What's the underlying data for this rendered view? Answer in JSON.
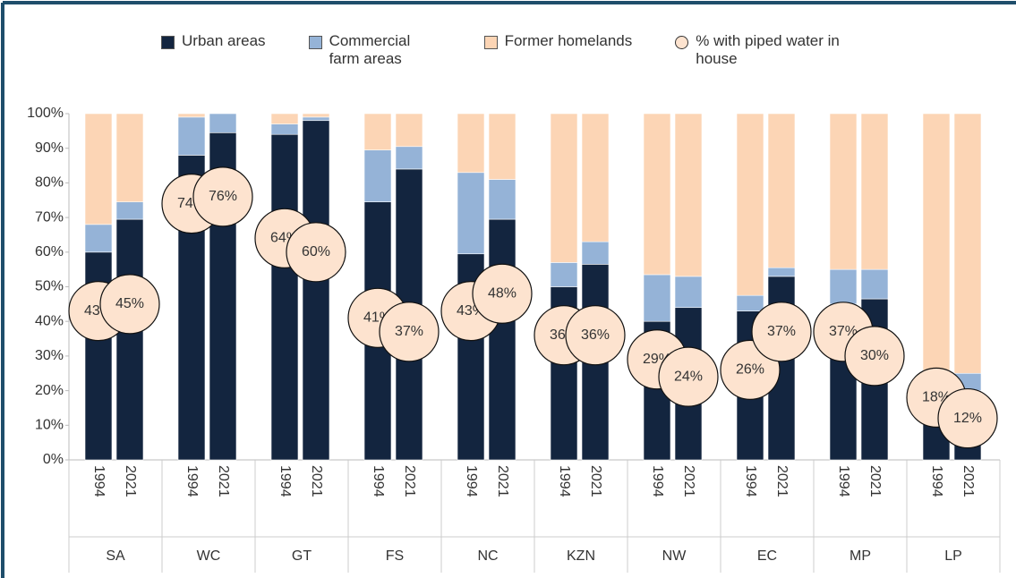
{
  "chart_data": {
    "type": "stacked_bar",
    "groups": [
      "SA",
      "WC",
      "GT",
      "FS",
      "NC",
      "KZN",
      "NW",
      "EC",
      "MP",
      "LP"
    ],
    "categories": [
      "1994",
      "2021",
      "1994",
      "2021",
      "1994",
      "2021",
      "1994",
      "2021",
      "1994",
      "2021",
      "1994",
      "2021",
      "1994",
      "2021",
      "1994",
      "2021",
      "1994",
      "2021",
      "1994",
      "2021"
    ],
    "series": [
      {
        "name": "Urban areas",
        "color": "#13253f",
        "values": [
          60,
          69.5,
          88,
          94.5,
          94,
          98,
          74.5,
          84,
          59.5,
          69.5,
          50,
          56.5,
          40,
          44,
          43,
          53,
          45,
          46.5,
          14,
          20
        ]
      },
      {
        "name": "Commercial farm areas",
        "color": "#95b3d7",
        "values": [
          8,
          5,
          11,
          5.5,
          3,
          1,
          15,
          6.5,
          23.5,
          11.5,
          7,
          6.5,
          13.5,
          9,
          4.5,
          2.5,
          10,
          8.5,
          8,
          5
        ]
      },
      {
        "name": "Former homelands",
        "color": "#fcd5b5",
        "values": [
          32,
          25.5,
          1,
          0,
          3,
          1,
          10.5,
          9.5,
          17,
          19,
          43,
          37,
          46.5,
          47,
          52.5,
          44.5,
          45,
          45,
          78,
          75
        ]
      }
    ],
    "markers": {
      "name": "% with piped water in house",
      "color": "#fde3cf",
      "values": [
        43,
        45,
        74,
        76,
        64,
        60,
        41,
        37,
        43,
        48,
        36,
        36,
        29,
        24,
        26,
        37,
        37,
        30,
        18,
        12
      ],
      "value_labels": [
        "43%",
        "45%",
        "74%",
        "76%",
        "64%",
        "60%",
        "41%",
        "37%",
        "43%",
        "48%",
        "36%",
        "36%",
        "29%",
        "24%",
        "26%",
        "37%",
        "37%",
        "30%",
        "18%",
        "12%"
      ]
    },
    "ylim": [
      0,
      100
    ],
    "yticks": [
      {
        "value": 0,
        "label": "0%"
      },
      {
        "value": 10,
        "label": "10%"
      },
      {
        "value": 20,
        "label": "20%"
      },
      {
        "value": 30,
        "label": "30%"
      },
      {
        "value": 40,
        "label": "40%"
      },
      {
        "value": 50,
        "label": "50%"
      },
      {
        "value": 60,
        "label": "60%"
      },
      {
        "value": 70,
        "label": "70%"
      },
      {
        "value": 80,
        "label": "80%"
      },
      {
        "value": 90,
        "label": "90%"
      },
      {
        "value": 100,
        "label": "100%"
      }
    ],
    "grid": false,
    "legend": "top"
  }
}
